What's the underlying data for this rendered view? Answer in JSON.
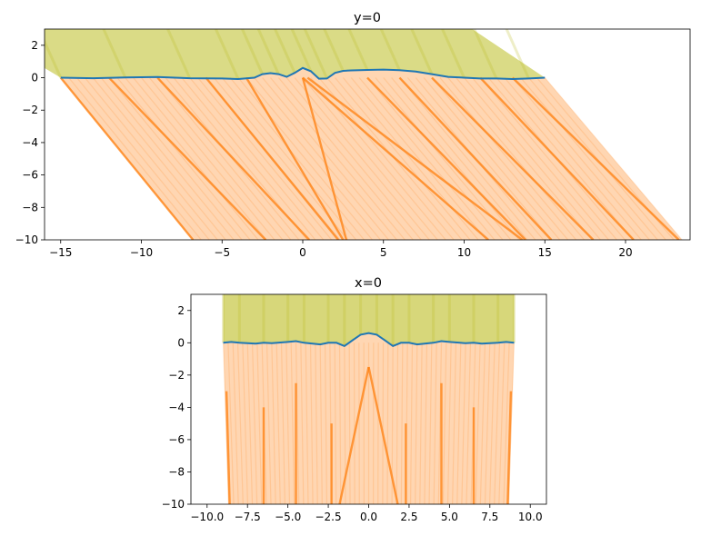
{
  "chart_data": [
    {
      "type": "line",
      "title": "y=0",
      "xlabel": "",
      "ylabel": "",
      "xlim": [
        -16,
        24
      ],
      "ylim": [
        -10,
        3
      ],
      "xticks": [
        -15,
        -10,
        -5,
        0,
        5,
        10,
        15,
        20
      ],
      "yticks": [
        -10,
        -8,
        -6,
        -4,
        -2,
        0,
        2
      ],
      "grid": false,
      "legend": "none",
      "colors": {
        "surface": "#1f77b4",
        "upper_rays": "#bcbd22",
        "lower_rays": "#ff7f0e"
      },
      "surface_profile": {
        "x": [
          -15,
          -13,
          -11,
          -9,
          -7,
          -5,
          -4,
          -3,
          -2.5,
          -2,
          -1.5,
          -1,
          -0.5,
          0,
          0.5,
          1,
          1.5,
          2,
          2.5,
          3,
          4,
          5,
          6,
          7,
          8,
          9,
          10,
          11,
          12,
          13,
          14,
          15
        ],
        "y": [
          0.0,
          -0.03,
          0.02,
          0.04,
          -0.03,
          -0.05,
          -0.08,
          0.0,
          0.22,
          0.28,
          0.22,
          0.05,
          0.3,
          0.6,
          0.4,
          -0.06,
          -0.05,
          0.3,
          0.42,
          0.45,
          0.48,
          0.5,
          0.46,
          0.38,
          0.22,
          0.05,
          0.0,
          -0.05,
          -0.05,
          -0.08,
          -0.05,
          0.0
        ]
      },
      "upper_region": {
        "x_start": [
          -16,
          15
        ],
        "y_top": 3,
        "x_top": [
          -16,
          10.5
        ]
      },
      "lower_region": {
        "x_bottom": [
          -6.8,
          23.5
        ]
      },
      "caustic_lines": [
        {
          "x": [
            -15,
            -6.8
          ],
          "y": [
            0,
            -10
          ]
        },
        {
          "x": [
            -12,
            -2.3
          ],
          "y": [
            0,
            -10
          ]
        },
        {
          "x": [
            -9,
            0.4
          ],
          "y": [
            0,
            -10
          ]
        },
        {
          "x": [
            -6,
            2.2
          ],
          "y": [
            0,
            -10
          ]
        },
        {
          "x": [
            -3.5,
            2.5
          ],
          "y": [
            0,
            -10
          ]
        },
        {
          "x": [
            0,
            2.7
          ],
          "y": [
            0,
            -10
          ]
        },
        {
          "x": [
            0,
            11.5
          ],
          "y": [
            0,
            -10
          ]
        },
        {
          "x": [
            0.3,
            13.6
          ],
          "y": [
            0,
            -10
          ]
        },
        {
          "x": [
            4,
            13.8
          ],
          "y": [
            0,
            -10
          ]
        },
        {
          "x": [
            6,
            15.4
          ],
          "y": [
            0,
            -10
          ]
        },
        {
          "x": [
            8,
            18
          ],
          "y": [
            0,
            -10
          ]
        },
        {
          "x": [
            11,
            20.5
          ],
          "y": [
            0,
            -10
          ]
        },
        {
          "x": [
            13,
            23.3
          ],
          "y": [
            0,
            -10
          ]
        }
      ]
    },
    {
      "type": "line",
      "title": "x=0",
      "xlabel": "",
      "ylabel": "",
      "xlim": [
        -11,
        11
      ],
      "ylim": [
        -10,
        3
      ],
      "xticks": [
        -10.0,
        -7.5,
        -5.0,
        -2.5,
        0.0,
        2.5,
        5.0,
        7.5,
        10.0
      ],
      "xtick_labels": [
        "−10.0",
        "−7.5",
        "−5.0",
        "−2.5",
        "0.0",
        "2.5",
        "5.0",
        "7.5",
        "10.0"
      ],
      "yticks": [
        -10,
        -8,
        -6,
        -4,
        -2,
        0,
        2
      ],
      "grid": false,
      "legend": "none",
      "colors": {
        "surface": "#1f77b4",
        "upper_rays": "#bcbd22",
        "lower_rays": "#ff7f0e"
      },
      "surface_profile": {
        "x": [
          -9,
          -8.5,
          -8,
          -7,
          -6.5,
          -6,
          -5,
          -4.5,
          -4,
          -3,
          -2.5,
          -2,
          -1.5,
          -1,
          -0.5,
          0,
          0.5,
          1,
          1.5,
          2,
          2.5,
          3,
          4,
          4.5,
          5,
          6,
          6.5,
          7,
          8,
          8.5,
          9
        ],
        "y": [
          0.0,
          0.05,
          0.0,
          -0.05,
          0.0,
          -0.03,
          0.05,
          0.1,
          0.0,
          -0.1,
          0.0,
          0.0,
          -0.2,
          0.15,
          0.5,
          0.6,
          0.5,
          0.15,
          -0.2,
          0.0,
          0.0,
          -0.1,
          0.0,
          0.1,
          0.05,
          -0.03,
          0.0,
          -0.05,
          0.0,
          0.05,
          0.0
        ]
      },
      "upper_region": {
        "x": [
          -9,
          9
        ],
        "y_top": 3
      },
      "lower_region": {
        "x": [
          -9,
          9
        ]
      },
      "caustic_lines": [
        {
          "x": [
            -8.8,
            -8.6
          ],
          "y": [
            -3,
            -10
          ]
        },
        {
          "x": [
            -6.5,
            -6.5
          ],
          "y": [
            -4,
            -10
          ]
        },
        {
          "x": [
            -4.5,
            -4.5
          ],
          "y": [
            -2.5,
            -10
          ]
        },
        {
          "x": [
            -2.3,
            -2.3
          ],
          "y": [
            -5,
            -10
          ]
        },
        {
          "x": [
            0,
            -1.8
          ],
          "y": [
            -1.5,
            -10
          ]
        },
        {
          "x": [
            0,
            1.8
          ],
          "y": [
            -1.5,
            -10
          ]
        },
        {
          "x": [
            2.3,
            2.3
          ],
          "y": [
            -5,
            -10
          ]
        },
        {
          "x": [
            4.5,
            4.5
          ],
          "y": [
            -2.5,
            -10
          ]
        },
        {
          "x": [
            6.5,
            6.5
          ],
          "y": [
            -4,
            -10
          ]
        },
        {
          "x": [
            8.8,
            8.6
          ],
          "y": [
            -3,
            -10
          ]
        }
      ]
    }
  ]
}
